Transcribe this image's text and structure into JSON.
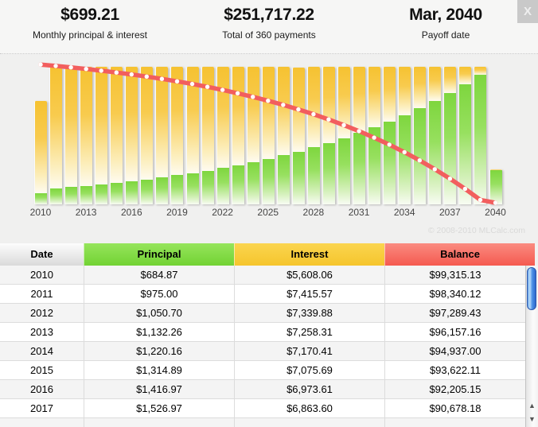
{
  "header": {
    "stats": [
      {
        "value": "$699.21",
        "label": "Monthly principal & interest"
      },
      {
        "value": "$251,717.22",
        "label": "Total of 360 payments"
      },
      {
        "value": "Mar, 2040",
        "label": "Payoff date"
      }
    ],
    "close_label": "X"
  },
  "watermark": "© 2008-2010 MLCalc.com",
  "chart_data": {
    "type": "bar",
    "subtype": "stacked-bars-with-line-overlay",
    "x": [
      2010,
      2011,
      2012,
      2013,
      2014,
      2015,
      2016,
      2017,
      2018,
      2019,
      2020,
      2021,
      2022,
      2023,
      2024,
      2025,
      2026,
      2027,
      2028,
      2029,
      2030,
      2031,
      2032,
      2033,
      2034,
      2035,
      2036,
      2037,
      2038,
      2039,
      2040
    ],
    "series": [
      {
        "name": "Principal",
        "render": "bar-bottom",
        "color": "#7ed63e",
        "values": [
          684.87,
          975.0,
          1050.7,
          1132.26,
          1220.16,
          1314.89,
          1416.97,
          1526.97,
          1645,
          1773,
          1911,
          2059,
          2219,
          2391,
          2577,
          2777,
          2993,
          3225,
          3476,
          3745,
          4036,
          4349,
          4687,
          5051,
          5443,
          5866,
          6321,
          6812,
          7341,
          7910,
          2069
        ]
      },
      {
        "name": "Interest",
        "render": "bar-top",
        "color": "#f6c231",
        "values": [
          5608.06,
          7415.57,
          7339.88,
          7258.31,
          7170.41,
          7075.69,
          6973.61,
          6863.6,
          6746,
          6618,
          6480,
          6331,
          6171,
          5999,
          5813,
          5613,
          5398,
          5165,
          4915,
          4645,
          4354,
          4041,
          3703,
          3340,
          2947,
          2525,
          2069,
          1579,
          1050,
          480,
          29
        ]
      },
      {
        "name": "Balance",
        "render": "line",
        "color": "#f25e5e",
        "marker": "white-dot",
        "values": [
          99315,
          98340,
          97289,
          96157,
          94937,
          93622,
          92205,
          90678,
          89033,
          87259,
          85348,
          83289,
          81070,
          78679,
          76102,
          73324,
          70332,
          67106,
          63631,
          59886,
          55849,
          51500,
          46813,
          41762,
          36319,
          30453,
          24132,
          17320,
          9980,
          2069,
          0
        ]
      }
    ],
    "xticks": [
      "2010",
      "2013",
      "2016",
      "2019",
      "2022",
      "2025",
      "2028",
      "2031",
      "2034",
      "2037",
      "2040"
    ],
    "bar_scale_max": 8390.52,
    "line_ylim": [
      0,
      100000
    ],
    "grid": false,
    "legend": "none"
  },
  "table": {
    "columns": [
      {
        "label": "Date"
      },
      {
        "label": "Principal"
      },
      {
        "label": "Interest"
      },
      {
        "label": "Balance"
      }
    ],
    "rows": [
      [
        "2010",
        "$684.87",
        "$5,608.06",
        "$99,315.13"
      ],
      [
        "2011",
        "$975.00",
        "$7,415.57",
        "$98,340.12"
      ],
      [
        "2012",
        "$1,050.70",
        "$7,339.88",
        "$97,289.43"
      ],
      [
        "2013",
        "$1,132.26",
        "$7,258.31",
        "$96,157.16"
      ],
      [
        "2014",
        "$1,220.16",
        "$7,170.41",
        "$94,937.00"
      ],
      [
        "2015",
        "$1,314.89",
        "$7,075.69",
        "$93,622.11"
      ],
      [
        "2016",
        "$1,416.97",
        "$6,973.61",
        "$92,205.15"
      ],
      [
        "2017",
        "$1,526.97",
        "$6,863.60",
        "$90,678.18"
      ]
    ]
  },
  "scrollbar": {
    "up_arrow": "▲",
    "down_arrow": "▼"
  },
  "colors": {
    "principal_green": "#7ed63e",
    "interest_yellow": "#f6c231",
    "balance_red": "#f25e5e",
    "thumb_blue": "#4c90e6"
  }
}
